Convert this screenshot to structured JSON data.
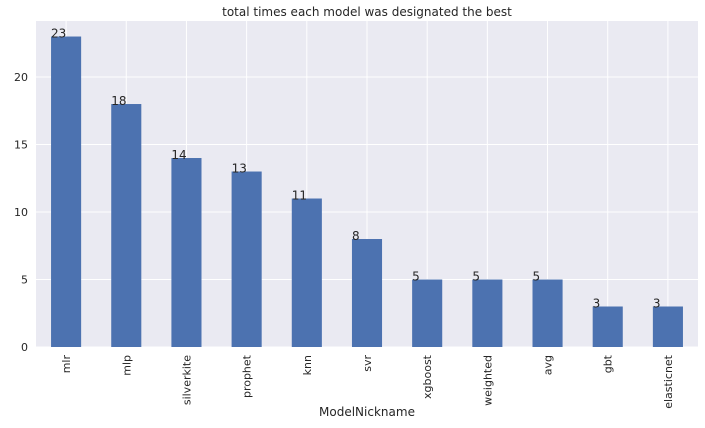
{
  "chart_data": {
    "type": "bar",
    "title": "total times each model was designated the best",
    "xlabel": "ModelNickname",
    "ylabel": "",
    "categories": [
      "mlr",
      "mlp",
      "silverkite",
      "prophet",
      "knn",
      "svr",
      "xgboost",
      "weighted",
      "avg",
      "gbt",
      "elasticnet"
    ],
    "values": [
      23,
      18,
      14,
      13,
      11,
      8,
      5,
      5,
      5,
      3,
      3
    ],
    "data_labels": [
      "23",
      "18",
      "14",
      "13",
      "11",
      "8",
      "5",
      "5",
      "5",
      "3",
      "3"
    ],
    "ylim": [
      0,
      24.15
    ],
    "yticks": [
      0,
      5,
      10,
      15,
      20
    ],
    "ytick_labels": [
      "0",
      "5",
      "10",
      "15",
      "20"
    ],
    "grid": true,
    "legend": "none"
  },
  "colors": {
    "bar": "#4c72b0",
    "plot_background": "#eaeaf2",
    "grid": "#ffffff",
    "text": "#262626"
  }
}
